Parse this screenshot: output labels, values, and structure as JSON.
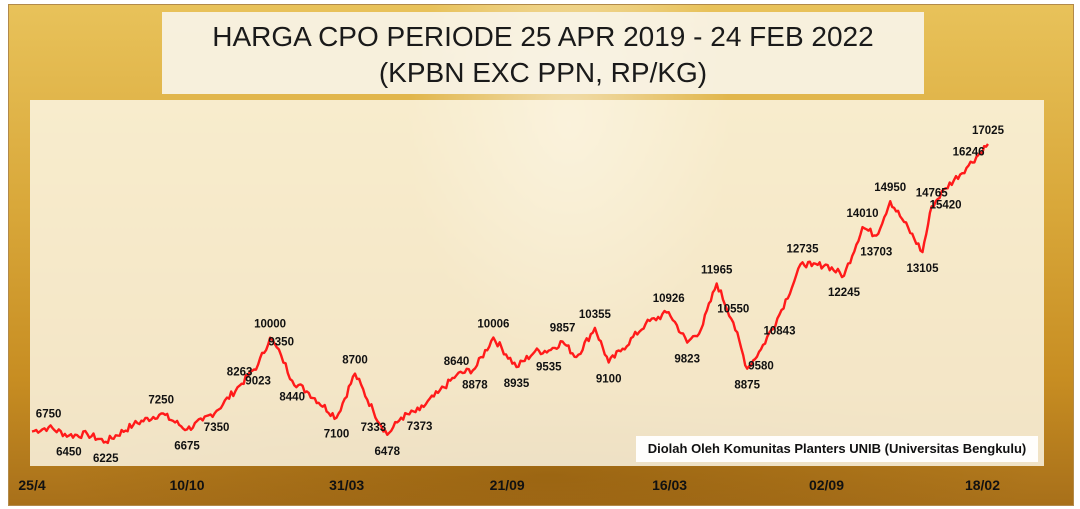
{
  "chart_data": {
    "type": "line",
    "title": "HARGA CPO PERIODE 25 APR 2019 - 24 FEB 2022",
    "subtitle": "(KPBN EXC PPN, RP/KG)",
    "xlabel": "",
    "ylabel": "",
    "source": "Diolah Oleh Komunitas Planters UNIB (Universitas Bengkulu)",
    "x_tick_labels": [
      "25/4",
      "10/10",
      "31/03",
      "21/09",
      "16/03",
      "02/09",
      "18/02"
    ],
    "x_ticks": [
      0,
      168,
      341,
      515,
      691,
      861,
      1030
    ],
    "ylim": [
      5000,
      18000
    ],
    "xlim": [
      0,
      1036
    ],
    "grid": false,
    "legend": "none",
    "line_color": "#ff1a1a",
    "series": [
      {
        "name": "",
        "x": [
          0,
          18,
          40,
          60,
          80,
          110,
          140,
          168,
          185,
          200,
          225,
          245,
          258,
          270,
          282,
          300,
          330,
          350,
          370,
          385,
          400,
          420,
          440,
          460,
          480,
          500,
          525,
          545,
          560,
          575,
          590,
          610,
          625,
          640,
          665,
          690,
          710,
          725,
          742,
          760,
          775,
          790,
          810,
          835,
          845,
          860,
          880,
          900,
          915,
          930,
          945,
          965,
          975,
          990,
          1015,
          1036
        ],
        "values": [
          6600,
          6750,
          6450,
          6500,
          6225,
          6850,
          7250,
          6675,
          7000,
          7350,
          8263,
          9023,
          10000,
          9350,
          8440,
          8000,
          7100,
          8700,
          7333,
          6478,
          7100,
          7373,
          8000,
          8640,
          8878,
          10006,
          8935,
          9500,
          9535,
          9857,
          9300,
          10355,
          9100,
          9600,
          10500,
          10926,
          9823,
          10300,
          11965,
          10550,
          8875,
          9580,
          10843,
          12735,
          12600,
          12650,
          12245,
          14010,
          13703,
          14950,
          14200,
          13105,
          14765,
          15420,
          16246,
          17025
        ]
      }
    ],
    "data_labels": [
      {
        "x": 18,
        "y": 6750,
        "text": "6750"
      },
      {
        "x": 40,
        "y": 6450,
        "text": "6450"
      },
      {
        "x": 80,
        "y": 6225,
        "text": "6225"
      },
      {
        "x": 140,
        "y": 7250,
        "text": "7250"
      },
      {
        "x": 168,
        "y": 6675,
        "text": "6675"
      },
      {
        "x": 200,
        "y": 7350,
        "text": "7350"
      },
      {
        "x": 225,
        "y": 8263,
        "text": "8263"
      },
      {
        "x": 245,
        "y": 9023,
        "text": "9023"
      },
      {
        "x": 258,
        "y": 10000,
        "text": "10000"
      },
      {
        "x": 270,
        "y": 9350,
        "text": "9350"
      },
      {
        "x": 282,
        "y": 8440,
        "text": "8440"
      },
      {
        "x": 330,
        "y": 7100,
        "text": "7100"
      },
      {
        "x": 350,
        "y": 8700,
        "text": "8700"
      },
      {
        "x": 370,
        "y": 7333,
        "text": "7333"
      },
      {
        "x": 385,
        "y": 6478,
        "text": "6478"
      },
      {
        "x": 420,
        "y": 7373,
        "text": "7373"
      },
      {
        "x": 460,
        "y": 8640,
        "text": "8640"
      },
      {
        "x": 480,
        "y": 8878,
        "text": "8878"
      },
      {
        "x": 500,
        "y": 10006,
        "text": "10006"
      },
      {
        "x": 525,
        "y": 8935,
        "text": "8935"
      },
      {
        "x": 560,
        "y": 9535,
        "text": "9535"
      },
      {
        "x": 575,
        "y": 9857,
        "text": "9857"
      },
      {
        "x": 610,
        "y": 10355,
        "text": "10355"
      },
      {
        "x": 625,
        "y": 9100,
        "text": "9100"
      },
      {
        "x": 690,
        "y": 10926,
        "text": "10926"
      },
      {
        "x": 710,
        "y": 9823,
        "text": "9823"
      },
      {
        "x": 742,
        "y": 11965,
        "text": "11965"
      },
      {
        "x": 760,
        "y": 10550,
        "text": "10550"
      },
      {
        "x": 775,
        "y": 8875,
        "text": "8875"
      },
      {
        "x": 790,
        "y": 9580,
        "text": "9580"
      },
      {
        "x": 810,
        "y": 10843,
        "text": "10843"
      },
      {
        "x": 835,
        "y": 12735,
        "text": "12735"
      },
      {
        "x": 880,
        "y": 12245,
        "text": "12245"
      },
      {
        "x": 900,
        "y": 14010,
        "text": "14010"
      },
      {
        "x": 915,
        "y": 13703,
        "text": "13703"
      },
      {
        "x": 930,
        "y": 14950,
        "text": "14950"
      },
      {
        "x": 965,
        "y": 13105,
        "text": "13105"
      },
      {
        "x": 975,
        "y": 14765,
        "text": "14765"
      },
      {
        "x": 990,
        "y": 15420,
        "text": "15420"
      },
      {
        "x": 1015,
        "y": 16246,
        "text": "16246"
      },
      {
        "x": 1036,
        "y": 17025,
        "text": "17025"
      }
    ]
  }
}
